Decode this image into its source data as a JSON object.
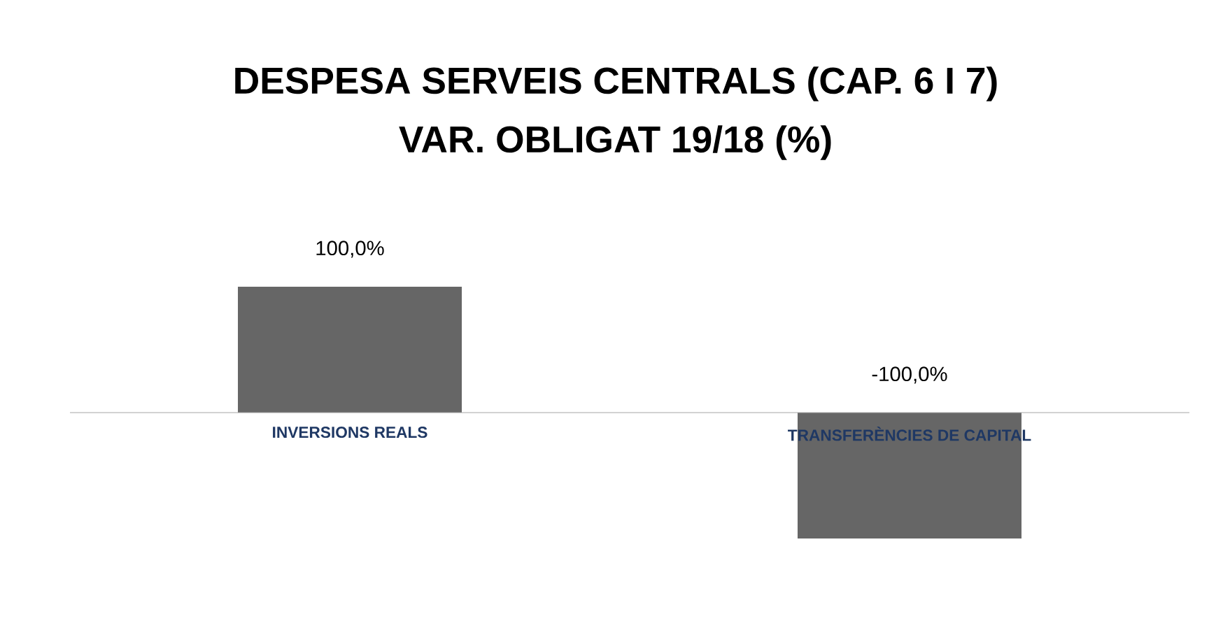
{
  "chart_data": {
    "type": "bar",
    "title": "DESPESA SERVEIS CENTRALS (CAP. 6 I 7)",
    "subtitle": "VAR. OBLIGAT 19/18 (%)",
    "categories": [
      "INVERSIONS REALS",
      "TRANSFERÈNCIES DE CAPITAL"
    ],
    "values": [
      100,
      -100
    ],
    "color": "#666666",
    "value_labels": [
      "100,0%",
      "-100,0%"
    ]
  }
}
